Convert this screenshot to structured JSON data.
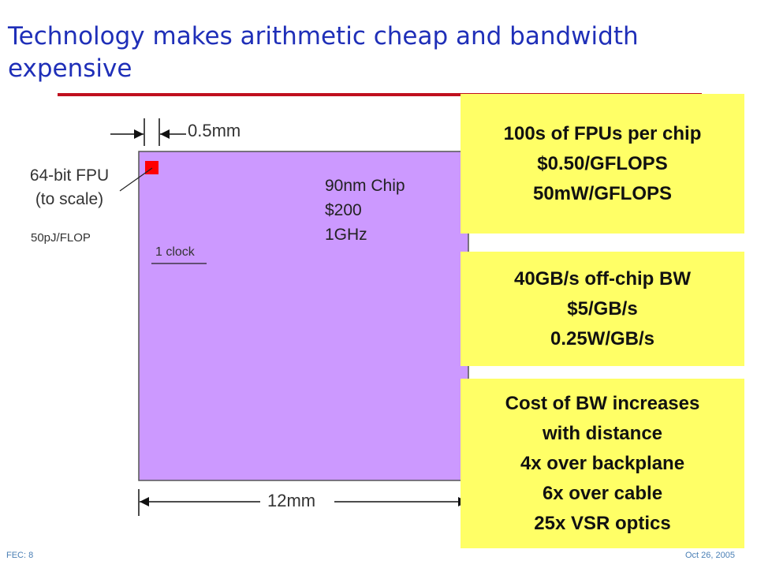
{
  "slide": {
    "title": "Technology makes arithmetic cheap and bandwidth expensive",
    "diagram": {
      "fpu_label": [
        "64-bit FPU",
        "(to scale)"
      ],
      "energy_label": "50pJ/FLOP",
      "clock_label": "1 clock",
      "width_small_label": "0.5mm",
      "width_chip_label": "12mm",
      "chip_label": [
        "90nm Chip",
        "$200",
        "1GHz"
      ]
    },
    "callouts": [
      {
        "lines": [
          "100s of FPUs per chip",
          "$0.50/GFLOPS",
          "50mW/GFLOPS"
        ]
      },
      {
        "lines": [
          "40GB/s off-chip BW",
          "$5/GB/s",
          "0.25W/GB/s"
        ]
      },
      {
        "lines": [
          "Cost of BW increases",
          "with distance",
          "4x over backplane",
          "6x over cable",
          "25x VSR optics"
        ]
      }
    ],
    "footer": {
      "left": "FEC: 8",
      "right": "Oct 26, 2005"
    }
  },
  "colors": {
    "title": "#1f2fb8",
    "rule": "#c0101e",
    "chip_fill": "#cc99ff",
    "fpu_square": "#ff0000",
    "callout_fill": "#ffff66"
  }
}
